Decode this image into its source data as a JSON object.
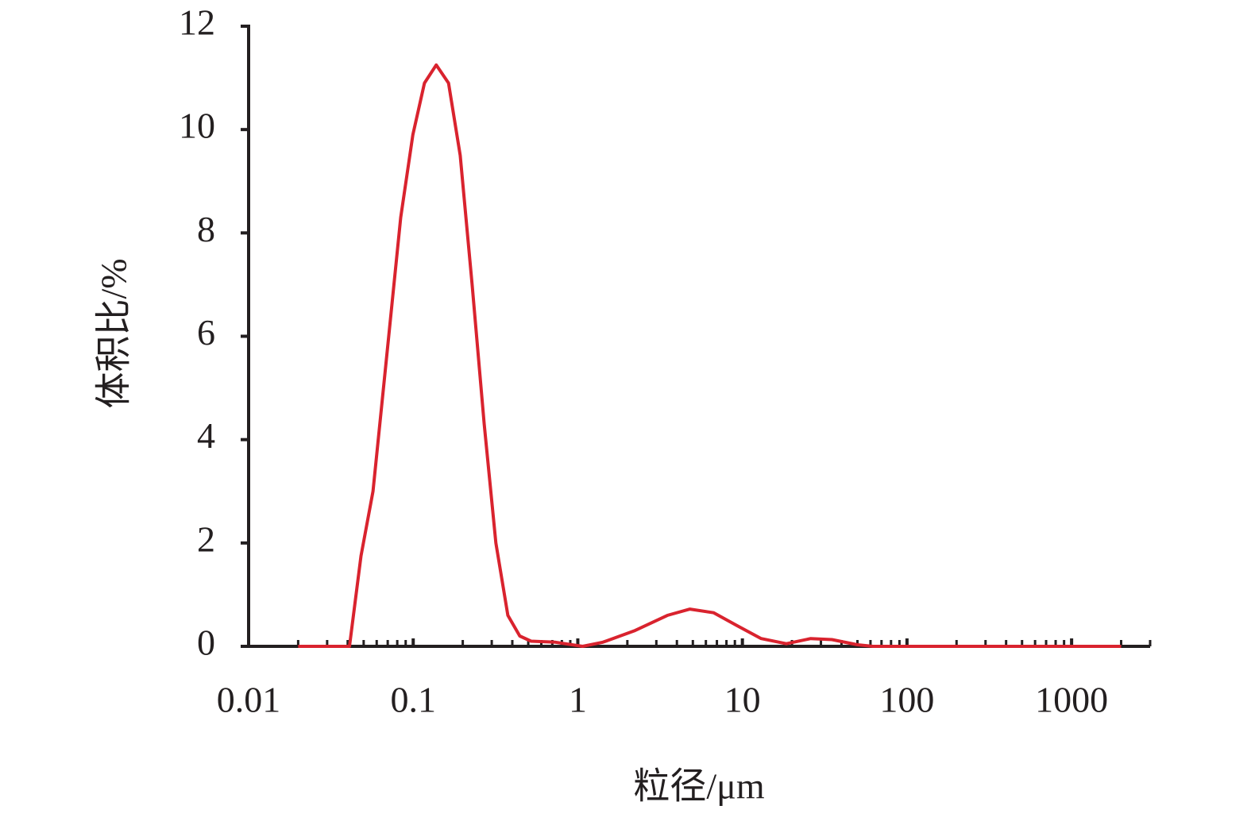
{
  "chart_data": {
    "type": "line",
    "x_label": "粒径/μm",
    "y_label": "体积比/%",
    "x_scale": "log",
    "x_minor_ticks": true,
    "xlim": [
      0.01,
      3000
    ],
    "xticks": [
      0.01,
      0.1,
      1,
      10,
      100,
      1000
    ],
    "ylim": [
      0,
      12
    ],
    "yticks": [
      0,
      2,
      4,
      6,
      8,
      10,
      12
    ],
    "series": [
      {
        "color": "#d9232e",
        "x": [
          0.02,
          0.041,
          0.0482,
          0.057,
          0.071,
          0.084,
          0.0995,
          0.117,
          0.138,
          0.164,
          0.193,
          0.228,
          0.27,
          0.318,
          0.376,
          0.444,
          0.52,
          0.73,
          1.07,
          1.42,
          2.2,
          3.5,
          4.8,
          6.7,
          9.3,
          13,
          18.5,
          26,
          35,
          50,
          62,
          2000
        ],
        "values": [
          0,
          0,
          1.75,
          3.0,
          6.0,
          8.3,
          9.9,
          10.9,
          11.25,
          10.9,
          9.5,
          7.0,
          4.3,
          2.0,
          0.6,
          0.2,
          0.1,
          0.08,
          0,
          0.08,
          0.3,
          0.6,
          0.72,
          0.65,
          0.4,
          0.15,
          0.05,
          0.15,
          0.13,
          0.03,
          0,
          0
        ]
      }
    ]
  }
}
